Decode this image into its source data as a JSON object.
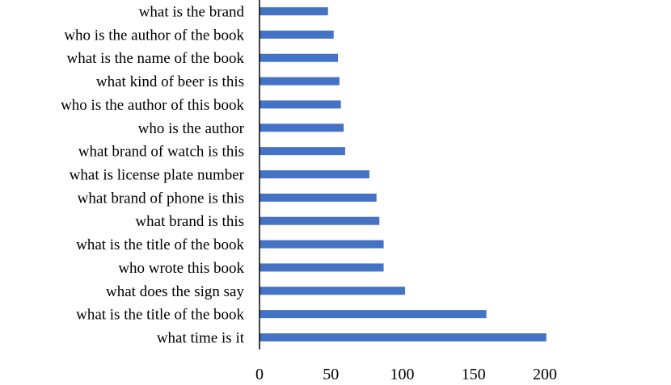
{
  "chart_data": {
    "type": "bar",
    "orientation": "horizontal",
    "categories": [
      "what is the brand",
      "who is the author of the book",
      "what is the name of the book",
      "what kind of beer is this",
      "who is the author of this book",
      "who is the author",
      "what brand of watch is this",
      "what is license plate number",
      "what brand of phone is this",
      "what brand is this",
      "what is the title of the book",
      "who wrote this book",
      "what does the sign say",
      "what is the title of the book",
      "what time is it"
    ],
    "values": [
      48,
      52,
      55,
      56,
      57,
      59,
      60,
      77,
      82,
      84,
      87,
      87,
      102,
      159,
      201
    ],
    "xticks": [
      "0",
      "50",
      "100",
      "150",
      "200"
    ],
    "xlim": [
      0,
      200
    ],
    "title": "",
    "xlabel": "",
    "ylabel": "",
    "grid": false,
    "legend": "none",
    "bar_color": "#4472c4",
    "axis_color": "#000000"
  }
}
